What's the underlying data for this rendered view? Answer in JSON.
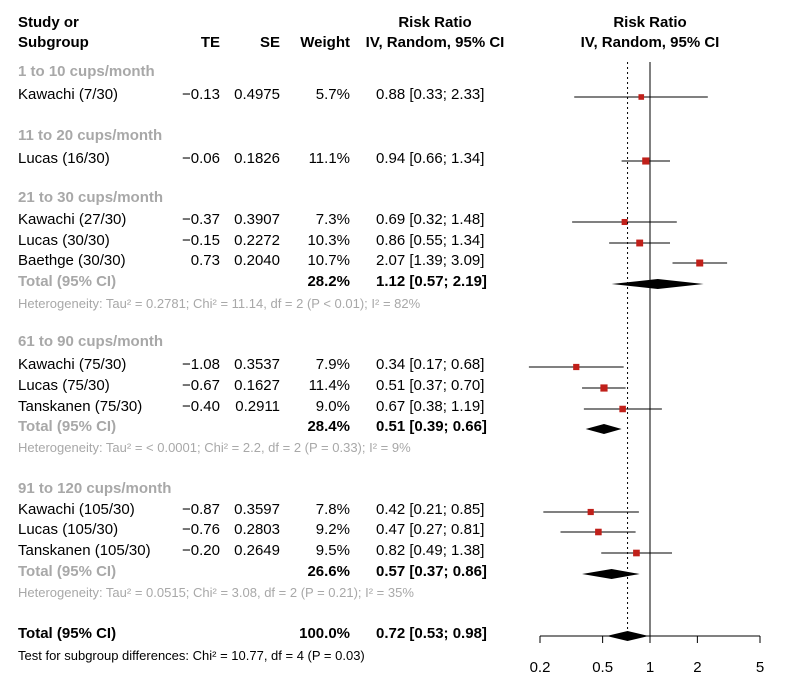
{
  "header": {
    "study_l1": "Study or",
    "study_l2": "Subgroup",
    "te": "TE",
    "se": "SE",
    "weight": "Weight",
    "rr_l1": "Risk Ratio",
    "rr_l2": "IV, Random, 95% CI",
    "plot_l1": "Risk Ratio",
    "plot_l2": "IV, Random, 95% CI"
  },
  "rows": [
    {
      "kind": "group",
      "label": "1 to 10 cups/month"
    },
    {
      "kind": "study",
      "study": "Kawachi (7/30)",
      "te": "−0.13",
      "se": "0.4975",
      "weight": "5.7%",
      "ci": "0.88 [0.33; 2.33]"
    },
    {
      "kind": "group",
      "label": "11 to 20 cups/month"
    },
    {
      "kind": "study",
      "study": "Lucas (16/30)",
      "te": "−0.06",
      "se": "0.1826",
      "weight": "11.1%",
      "ci": "0.94 [0.66; 1.34]"
    },
    {
      "kind": "group",
      "label": "21 to 30 cups/month"
    },
    {
      "kind": "study",
      "study": "Kawachi (27/30)",
      "te": "−0.37",
      "se": "0.3907",
      "weight": "7.3%",
      "ci": "0.69 [0.32; 1.48]"
    },
    {
      "kind": "study",
      "study": "Lucas (30/30)",
      "te": "−0.15",
      "se": "0.2272",
      "weight": "10.3%",
      "ci": "0.86 [0.55; 1.34]"
    },
    {
      "kind": "study",
      "study": "Baethge (30/30)",
      "te": "0.73",
      "se": "0.2040",
      "weight": "10.7%",
      "ci": "2.07 [1.39; 3.09]"
    },
    {
      "kind": "total",
      "study": "Total (95% CI)",
      "weight": "28.2%",
      "ci": "1.12 [0.57; 2.19]"
    },
    {
      "kind": "het",
      "text": "Heterogeneity: Tau² = 0.2781; Chi² = 11.14, df = 2 (P < 0.01); I² = 82%"
    },
    {
      "kind": "group",
      "label": "61 to 90 cups/month"
    },
    {
      "kind": "study",
      "study": "Kawachi (75/30)",
      "te": "−1.08",
      "se": "0.3537",
      "weight": "7.9%",
      "ci": "0.34 [0.17; 0.68]"
    },
    {
      "kind": "study",
      "study": "Lucas (75/30)",
      "te": "−0.67",
      "se": "0.1627",
      "weight": "11.4%",
      "ci": "0.51 [0.37; 0.70]"
    },
    {
      "kind": "study",
      "study": "Tanskanen (75/30)",
      "te": "−0.40",
      "se": "0.2911",
      "weight": "9.0%",
      "ci": "0.67 [0.38; 1.19]"
    },
    {
      "kind": "total",
      "study": "Total (95% CI)",
      "weight": "28.4%",
      "ci": "0.51 [0.39; 0.66]"
    },
    {
      "kind": "het",
      "text": "Heterogeneity: Tau² = < 0.0001; Chi² = 2.2, df = 2 (P = 0.33); I² = 9%"
    },
    {
      "kind": "group",
      "label": "91 to 120 cups/month"
    },
    {
      "kind": "study",
      "study": "Kawachi (105/30)",
      "te": "−0.87",
      "se": "0.3597",
      "weight": "7.8%",
      "ci": "0.42 [0.21; 0.85]"
    },
    {
      "kind": "study",
      "study": "Lucas (105/30)",
      "te": "−0.76",
      "se": "0.2803",
      "weight": "9.2%",
      "ci": "0.47 [0.27; 0.81]"
    },
    {
      "kind": "study",
      "study": "Tanskanen (105/30)",
      "te": "−0.20",
      "se": "0.2649",
      "weight": "9.5%",
      "ci": "0.82 [0.49; 1.38]"
    },
    {
      "kind": "total",
      "study": "Total (95% CI)",
      "weight": "26.6%",
      "ci": "0.57 [0.37; 0.86]"
    },
    {
      "kind": "het",
      "text": "Heterogeneity: Tau² = 0.0515; Chi² = 3.08, df = 2 (P = 0.21); I² = 35%"
    },
    {
      "kind": "overall",
      "study": "Total (95% CI)",
      "weight": "100.0%",
      "ci": "0.72 [0.53; 0.98]"
    },
    {
      "kind": "test",
      "text": "Test for subgroup differences: Chi² = 10.77, df = 4 (P = 0.03)"
    }
  ],
  "chart_data": {
    "type": "forest",
    "x_scale": "log",
    "xlim": [
      0.2,
      5
    ],
    "x_ticks": [
      "0.2",
      "0.5",
      "1",
      "2",
      "5"
    ],
    "reference_line": 1,
    "pooled_line": 0.72,
    "colors": {
      "marker": "#c0201a",
      "text_muted": "#a8a8a8",
      "line": "#000000"
    },
    "studies": [
      {
        "study": "Kawachi (7/30)",
        "subgroup": "1 to 10 cups/month",
        "rr": 0.88,
        "lower": 0.33,
        "upper": 2.33,
        "weight": 5.7
      },
      {
        "study": "Lucas (16/30)",
        "subgroup": "11 to 20 cups/month",
        "rr": 0.94,
        "lower": 0.66,
        "upper": 1.34,
        "weight": 11.1
      },
      {
        "study": "Kawachi (27/30)",
        "subgroup": "21 to 30 cups/month",
        "rr": 0.69,
        "lower": 0.32,
        "upper": 1.48,
        "weight": 7.3
      },
      {
        "study": "Lucas (30/30)",
        "subgroup": "21 to 30 cups/month",
        "rr": 0.86,
        "lower": 0.55,
        "upper": 1.34,
        "weight": 10.3
      },
      {
        "study": "Baethge (30/30)",
        "subgroup": "21 to 30 cups/month",
        "rr": 2.07,
        "lower": 1.39,
        "upper": 3.09,
        "weight": 10.7
      },
      {
        "study": "Kawachi (75/30)",
        "subgroup": "61 to 90 cups/month",
        "rr": 0.34,
        "lower": 0.17,
        "upper": 0.68,
        "weight": 7.9
      },
      {
        "study": "Lucas (75/30)",
        "subgroup": "61 to 90 cups/month",
        "rr": 0.51,
        "lower": 0.37,
        "upper": 0.7,
        "weight": 11.4
      },
      {
        "study": "Tanskanen (75/30)",
        "subgroup": "61 to 90 cups/month",
        "rr": 0.67,
        "lower": 0.38,
        "upper": 1.19,
        "weight": 9.0
      },
      {
        "study": "Kawachi (105/30)",
        "subgroup": "91 to 120 cups/month",
        "rr": 0.42,
        "lower": 0.21,
        "upper": 0.85,
        "weight": 7.8
      },
      {
        "study": "Lucas (105/30)",
        "subgroup": "91 to 120 cups/month",
        "rr": 0.47,
        "lower": 0.27,
        "upper": 0.81,
        "weight": 9.2
      },
      {
        "study": "Tanskanen (105/30)",
        "subgroup": "91 to 120 cups/month",
        "rr": 0.82,
        "lower": 0.49,
        "upper": 1.38,
        "weight": 9.5
      }
    ],
    "pooled": [
      {
        "label": "21 to 30 cups/month",
        "rr": 1.12,
        "lower": 0.57,
        "upper": 2.19,
        "weight": 28.2
      },
      {
        "label": "61 to 90 cups/month",
        "rr": 0.51,
        "lower": 0.39,
        "upper": 0.66,
        "weight": 28.4
      },
      {
        "label": "91 to 120 cups/month",
        "rr": 0.57,
        "lower": 0.37,
        "upper": 0.86,
        "weight": 26.6
      },
      {
        "label": "Total (95% CI)",
        "rr": 0.72,
        "lower": 0.53,
        "upper": 0.98,
        "weight": 100.0
      }
    ]
  }
}
